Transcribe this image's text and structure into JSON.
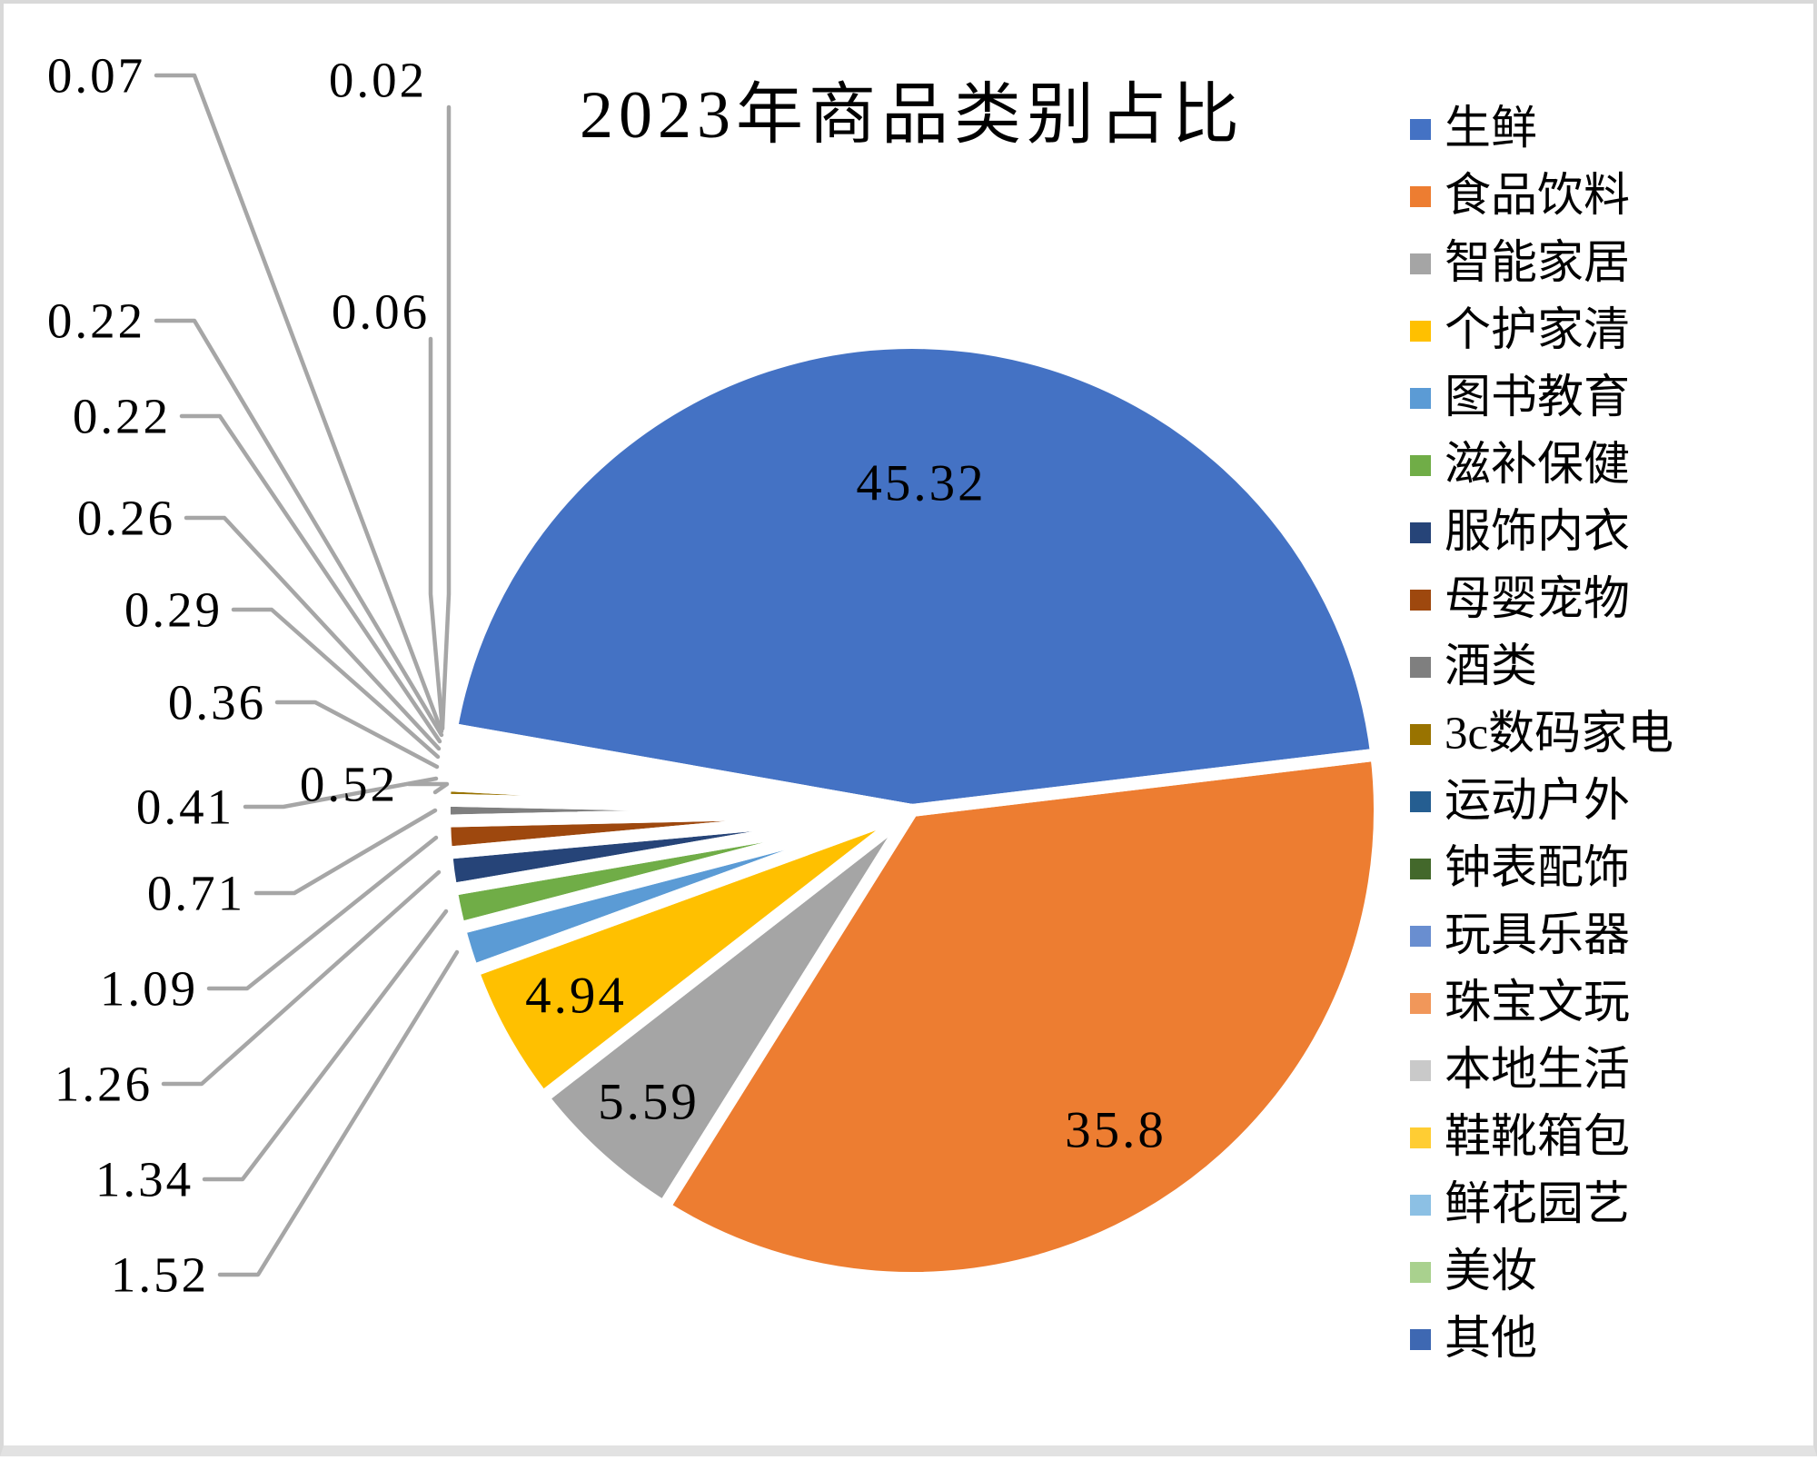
{
  "title": "2023年商品类别占比",
  "legend": {
    "position": "right",
    "items": [
      "生鲜",
      "食品饮料",
      "智能家居",
      "个护家清",
      "图书教育",
      "滋补保健",
      "服饰内衣",
      "母婴宠物",
      "酒类",
      "3c数码家电",
      "运动户外",
      "钟表配饰",
      "玩具乐器",
      "珠宝文玩",
      "本地生活",
      "鞋靴箱包",
      "鲜花园艺",
      "美妆",
      "其他"
    ]
  },
  "chart_data": {
    "type": "pie",
    "title": "2023年商品类别占比",
    "unit": "percent",
    "categories": [
      "生鲜",
      "食品饮料",
      "智能家居",
      "个护家清",
      "图书教育",
      "滋补保健",
      "服饰内衣",
      "母婴宠物",
      "酒类",
      "3c数码家电",
      "运动户外",
      "钟表配饰",
      "玩具乐器",
      "珠宝文玩",
      "本地生活",
      "鞋靴箱包",
      "鲜花园艺",
      "美妆",
      "其他"
    ],
    "values": [
      45.32,
      35.8,
      5.59,
      4.94,
      1.52,
      1.34,
      1.26,
      1.09,
      0.71,
      0.52,
      0.41,
      0.36,
      0.29,
      0.26,
      0.22,
      0.22,
      0.07,
      0.06,
      0.02
    ],
    "labels": [
      "45.32",
      "35.8",
      "5.59",
      "4.94",
      "1.52",
      "1.34",
      "1.26",
      "1.09",
      "0.71",
      "0.52",
      "0.41",
      "0.36",
      "0.29",
      "0.26",
      "0.22",
      "0.22",
      "0.07",
      "0.06",
      "0.02"
    ],
    "colors": [
      "#4472C4",
      "#ED7D31",
      "#A5A5A5",
      "#FFC000",
      "#5B9BD5",
      "#70AD47",
      "#264478",
      "#9E480E",
      "#7F7F7F",
      "#997300",
      "#255E91",
      "#43682B",
      "#698ED0",
      "#F1975A",
      "#C9C9C9",
      "#FFCD33",
      "#8CC0E4",
      "#A9D18E",
      "#3E68B2",
      "#A6A6A6"
    ],
    "leader_line_color": "#A6A6A6",
    "slice_border_color": "#FFFFFF",
    "start_angle_deg": 280,
    "direction": "clockwise",
    "legend_position": "right",
    "label_layout": "large-slices-inside, small-slices-outside-with-leader-lines"
  }
}
